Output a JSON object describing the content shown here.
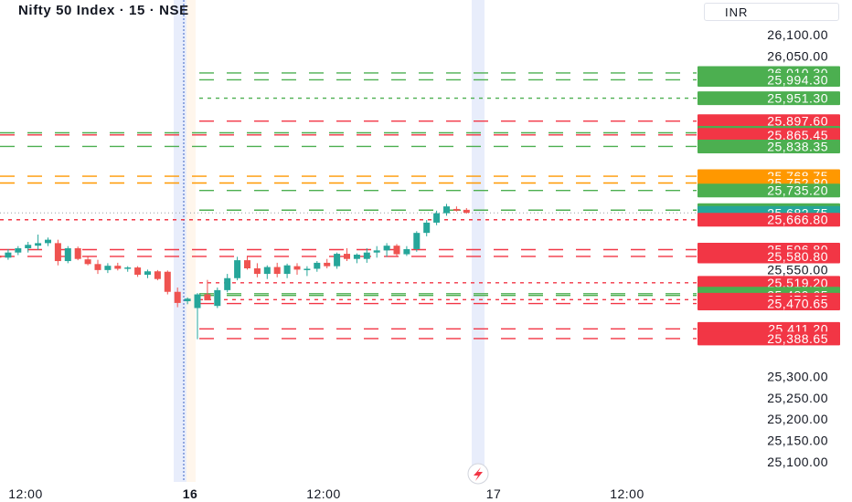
{
  "header": {
    "title": "Nifty 50 Index · 15 · NSE",
    "currency": "INR"
  },
  "colors": {
    "up": "#26a69a",
    "down": "#ef5350",
    "green_line": "#4caf50",
    "red_line": "#f23645",
    "orange_line": "#ff9800",
    "teal_label": "#26a69a",
    "session_band": "#e8edfb"
  },
  "chart_data": {
    "type": "candlestick",
    "title": "Nifty 50 Index · 15 · NSE",
    "y_axis_ticks": [
      "26,100.00",
      "26,050.00",
      "25,550.00",
      "25,300.00",
      "25,250.00",
      "25,200.00",
      "25,150.00",
      "25,100.00"
    ],
    "x_axis_ticks": [
      "12:00",
      "16",
      "12:00",
      "17",
      "12:00"
    ],
    "ylim": [
      25085,
      26115
    ],
    "current_price": 25682.75,
    "level_lines": [
      {
        "price": 26010.3,
        "label": "26,010.30",
        "color": "green",
        "style": "dashed"
      },
      {
        "price": 25994.3,
        "label": "25,994.30",
        "color": "green",
        "style": "dashed"
      },
      {
        "price": 25951.3,
        "label": "25,951.30",
        "color": "green",
        "style": "dotted"
      },
      {
        "price": 25897.6,
        "label": "25,897.60",
        "color": "red",
        "style": "dashed"
      },
      {
        "price": 25870.3,
        "label": "25,870.30",
        "color": "green",
        "style": "dashed"
      },
      {
        "price": 25865.45,
        "label": "25,865.45",
        "color": "red",
        "style": "dashed"
      },
      {
        "price": 25838.35,
        "label": "25,838.35",
        "color": "green",
        "style": "dashed"
      },
      {
        "price": 25768.75,
        "label": "25,768.75",
        "color": "orange",
        "style": "dashed"
      },
      {
        "price": 25752.8,
        "label": "25,752.80",
        "color": "orange",
        "style": "dashed"
      },
      {
        "price": 25735.2,
        "label": "25,735.20",
        "color": "green",
        "style": "dashed"
      },
      {
        "price": 25689.2,
        "label": "25,689.20",
        "color": "green",
        "style": "dashed"
      },
      {
        "price": 25666.8,
        "label": "25,666.80",
        "color": "red",
        "style": "dotted"
      },
      {
        "price": 25596.8,
        "label": "25,596.80",
        "color": "red",
        "style": "dashed"
      },
      {
        "price": 25580.8,
        "label": "25,580.80",
        "color": "red",
        "style": "dashed"
      },
      {
        "price": 25519.2,
        "label": "25,519.20",
        "color": "red",
        "style": "dotted"
      },
      {
        "price": 25493.65,
        "label": "25,493.65",
        "color": "green",
        "style": "dashed"
      },
      {
        "price": 25489.65,
        "label": "25,489.65",
        "color": "green",
        "style": "dashed"
      },
      {
        "price": 25479.65,
        "label": "25,479.65",
        "color": "red",
        "style": "dotted"
      },
      {
        "price": 25470.65,
        "label": "25,470.65",
        "color": "red",
        "style": "dashed"
      },
      {
        "price": 25411.2,
        "label": "25,411.20",
        "color": "red",
        "style": "dashed"
      },
      {
        "price": 25388.65,
        "label": "25,388.65",
        "color": "red",
        "style": "dashed"
      }
    ],
    "candles": [
      {
        "o": 25583,
        "h": 25588,
        "l": 25564,
        "c": 25578
      },
      {
        "o": 25578,
        "h": 25598,
        "l": 25573,
        "c": 25590
      },
      {
        "o": 25590,
        "h": 25605,
        "l": 25584,
        "c": 25600
      },
      {
        "o": 25600,
        "h": 25615,
        "l": 25590,
        "c": 25608
      },
      {
        "o": 25606,
        "h": 25632,
        "l": 25596,
        "c": 25612
      },
      {
        "o": 25612,
        "h": 25625,
        "l": 25605,
        "c": 25620
      },
      {
        "o": 25612,
        "h": 25620,
        "l": 25560,
        "c": 25570
      },
      {
        "o": 25570,
        "h": 25605,
        "l": 25565,
        "c": 25600
      },
      {
        "o": 25600,
        "h": 25604,
        "l": 25572,
        "c": 25575
      },
      {
        "o": 25574,
        "h": 25580,
        "l": 25560,
        "c": 25563
      },
      {
        "o": 25563,
        "h": 25573,
        "l": 25540,
        "c": 25549
      },
      {
        "o": 25549,
        "h": 25565,
        "l": 25542,
        "c": 25559
      },
      {
        "o": 25559,
        "h": 25566,
        "l": 25548,
        "c": 25552
      },
      {
        "o": 25552,
        "h": 25558,
        "l": 25545,
        "c": 25555
      },
      {
        "o": 25555,
        "h": 25558,
        "l": 25533,
        "c": 25538
      },
      {
        "o": 25538,
        "h": 25550,
        "l": 25530,
        "c": 25546
      },
      {
        "o": 25546,
        "h": 25549,
        "l": 25525,
        "c": 25528
      },
      {
        "o": 25545,
        "h": 25548,
        "l": 25492,
        "c": 25498
      },
      {
        "o": 25498,
        "h": 25508,
        "l": 25462,
        "c": 25472
      },
      {
        "o": 25476,
        "h": 25485,
        "l": 25469,
        "c": 25482
      },
      {
        "o": 25460,
        "h": 25495,
        "l": 25387,
        "c": 25492
      },
      {
        "o": 25492,
        "h": 25526,
        "l": 25480,
        "c": 25478
      },
      {
        "o": 25465,
        "h": 25508,
        "l": 25460,
        "c": 25502
      },
      {
        "o": 25502,
        "h": 25540,
        "l": 25497,
        "c": 25530
      },
      {
        "o": 25530,
        "h": 25580,
        "l": 25525,
        "c": 25572
      },
      {
        "o": 25572,
        "h": 25580,
        "l": 25550,
        "c": 25553
      },
      {
        "o": 25553,
        "h": 25565,
        "l": 25532,
        "c": 25540
      },
      {
        "o": 25540,
        "h": 25560,
        "l": 25528,
        "c": 25556
      },
      {
        "o": 25556,
        "h": 25566,
        "l": 25532,
        "c": 25540
      },
      {
        "o": 25540,
        "h": 25564,
        "l": 25530,
        "c": 25560
      },
      {
        "o": 25558,
        "h": 25565,
        "l": 25538,
        "c": 25550
      },
      {
        "o": 25550,
        "h": 25558,
        "l": 25535,
        "c": 25552
      },
      {
        "o": 25552,
        "h": 25570,
        "l": 25545,
        "c": 25566
      },
      {
        "o": 25566,
        "h": 25575,
        "l": 25553,
        "c": 25558
      },
      {
        "o": 25558,
        "h": 25590,
        "l": 25552,
        "c": 25587
      },
      {
        "o": 25587,
        "h": 25600,
        "l": 25570,
        "c": 25575
      },
      {
        "o": 25575,
        "h": 25588,
        "l": 25565,
        "c": 25585
      },
      {
        "o": 25575,
        "h": 25600,
        "l": 25566,
        "c": 25590
      },
      {
        "o": 25590,
        "h": 25605,
        "l": 25578,
        "c": 25595
      },
      {
        "o": 25595,
        "h": 25612,
        "l": 25580,
        "c": 25606
      },
      {
        "o": 25606,
        "h": 25610,
        "l": 25582,
        "c": 25586
      },
      {
        "o": 25586,
        "h": 25605,
        "l": 25582,
        "c": 25598
      },
      {
        "o": 25598,
        "h": 25640,
        "l": 25592,
        "c": 25636
      },
      {
        "o": 25636,
        "h": 25666,
        "l": 25628,
        "c": 25660
      },
      {
        "o": 25660,
        "h": 25688,
        "l": 25654,
        "c": 25682
      },
      {
        "o": 25682,
        "h": 25704,
        "l": 25676,
        "c": 25698
      },
      {
        "o": 25692,
        "h": 25698,
        "l": 25686,
        "c": 25688
      },
      {
        "o": 25690,
        "h": 25694,
        "l": 25681,
        "c": 25683
      }
    ]
  }
}
